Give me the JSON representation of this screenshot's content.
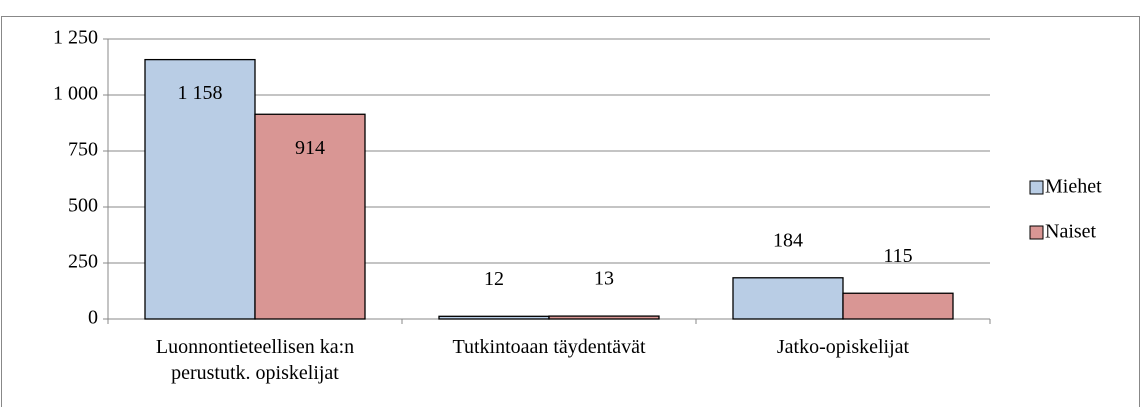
{
  "chart_data": {
    "type": "bar",
    "categories": [
      "Luonnontieteellisen ka:n\nperustutk. opiskelijat",
      "Tutkintoaan täydentävät",
      "Jatko-opiskelijat"
    ],
    "series": [
      {
        "name": "Miehet",
        "color": "#b9cde5",
        "values": [
          1158,
          12,
          184
        ],
        "value_labels": [
          "1 158",
          "12",
          "184"
        ]
      },
      {
        "name": "Naiset",
        "color": "#d99694",
        "values": [
          914,
          13,
          115
        ],
        "value_labels": [
          "914",
          "13",
          "115"
        ]
      }
    ],
    "ylim": [
      0,
      1250
    ],
    "yticks": [
      0,
      250,
      500,
      750,
      {
        "value": 1000,
        "label": "1 000"
      },
      {
        "value": 1250,
        "label": "1 250"
      }
    ],
    "grid": true,
    "legend": "right"
  }
}
